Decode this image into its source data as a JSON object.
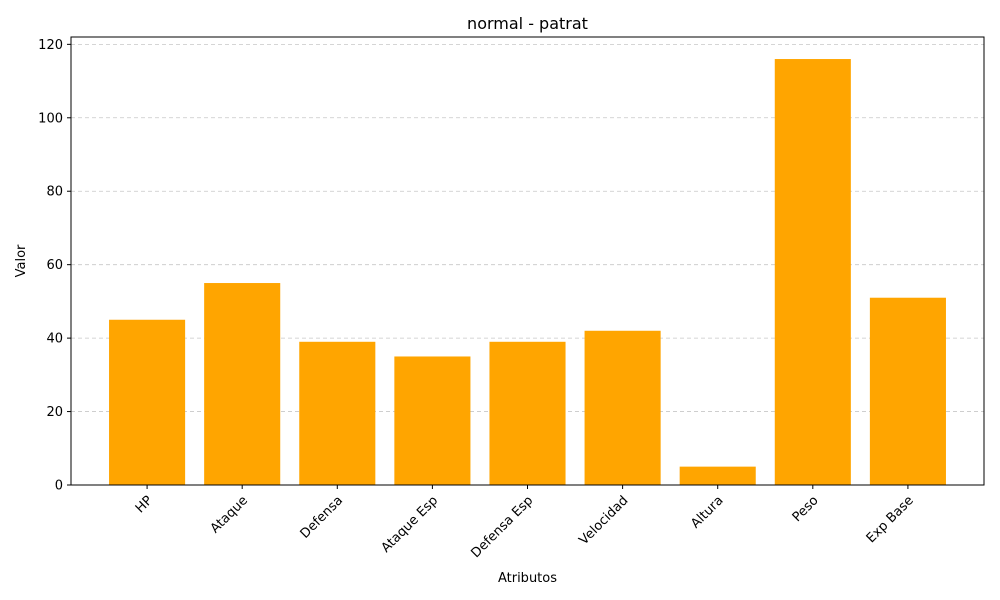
{
  "chart_data": {
    "type": "bar",
    "title": "normal - patrat",
    "xlabel": "Atributos",
    "ylabel": "Valor",
    "categories": [
      "HP",
      "Ataque",
      "Defensa",
      "Ataque Esp",
      "Defensa Esp",
      "Velocidad",
      "Altura",
      "Peso",
      "Exp Base"
    ],
    "values": [
      45,
      55,
      39,
      35,
      39,
      42,
      5,
      116,
      51
    ],
    "ylim": [
      0,
      122
    ],
    "yticks": [
      0,
      20,
      40,
      60,
      80,
      100,
      120
    ],
    "bar_color": "#ffa500",
    "grid": "y-dashed",
    "xtick_rotation": 45
  }
}
